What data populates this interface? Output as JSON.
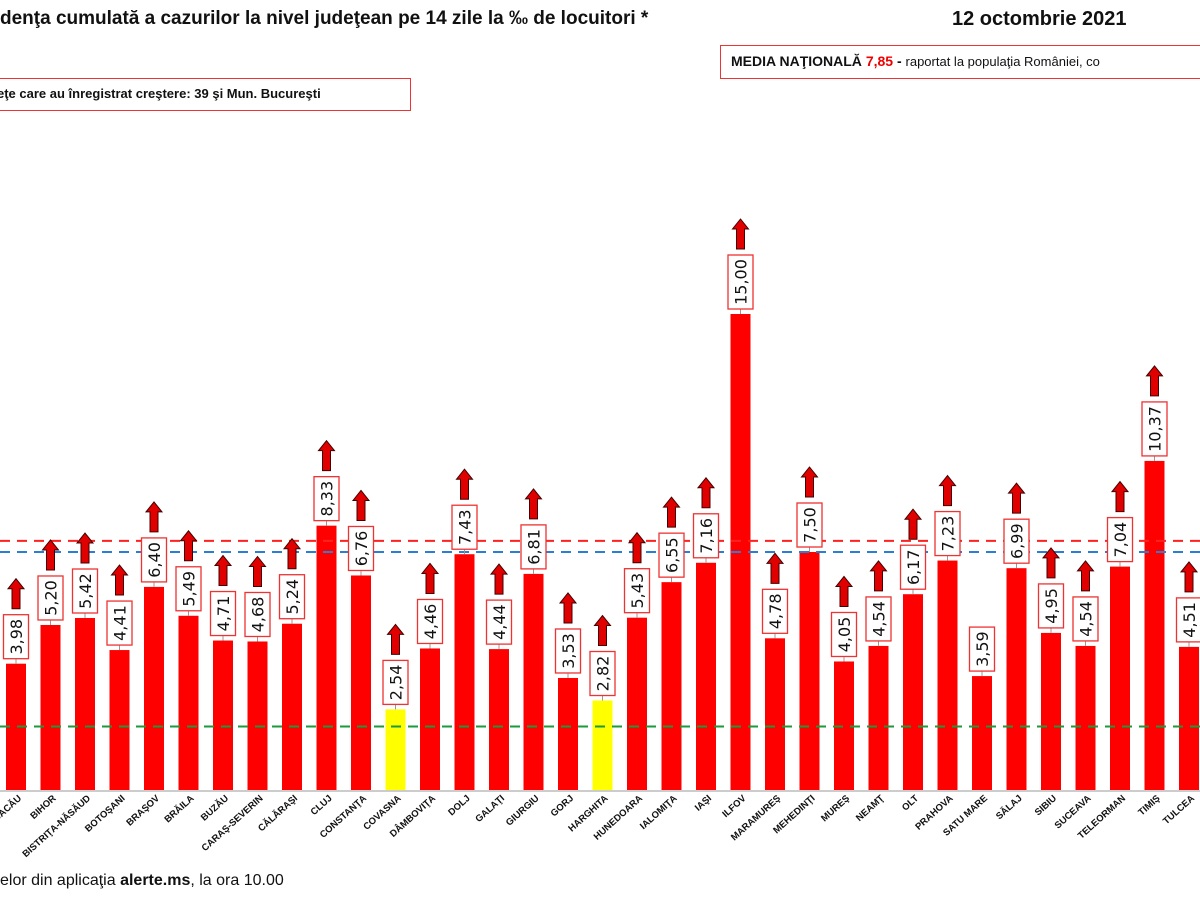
{
  "header": {
    "title": "denţa cumulată a cazurilor la nivel judeţean pe 14 zile la ‰ de locuitori *",
    "date": "12 octombrie 2021",
    "media_label": "MEDIA NAŢIONALĂ",
    "media_value": "7,85",
    "media_dash": " - ",
    "media_rest": "raportat la populaţia României, co",
    "increase_note": "eţe care au înregistrat creştere:  39 şi Mun. Bucureşti"
  },
  "footer": {
    "prefix": "elor din aplicaţia ",
    "app": "alerte.ms",
    "suffix": ", la ora 10.00"
  },
  "colors": {
    "bar": "#ff0000",
    "bar_low": "#ffff00",
    "national_line": "#ff2020",
    "blue_line": "#2a7fd4",
    "green_line": "#1a9a3a",
    "arrow": "#e00000"
  },
  "chart_data": {
    "type": "bar",
    "categories": [
      "BACĂU",
      "BIHOR",
      "BISTRIŢA-NĂSĂUD",
      "BOTOŞANI",
      "BRAŞOV",
      "BRĂILA",
      "BUZĂU",
      "CARAŞ-SEVERIN",
      "CĂLĂRAŞI",
      "CLUJ",
      "CONSTANŢA",
      "COVASNA",
      "DÂMBOVIŢA",
      "DOLJ",
      "GALAŢI",
      "GIURGIU",
      "GORJ",
      "HARGHITA",
      "HUNEDOARA",
      "IALOMIŢA",
      "IAŞI",
      "ILFOV",
      "MARAMUREŞ",
      "MEHEDINŢI",
      "MUREŞ",
      "NEAMŢ",
      "OLT",
      "PRAHOVA",
      "SATU MARE",
      "SĂLAJ",
      "SIBIU",
      "SUCEAVA",
      "TELEORMAN",
      "TIMIŞ",
      "TULCEA"
    ],
    "values": [
      3.98,
      5.2,
      5.42,
      4.41,
      6.4,
      5.49,
      4.71,
      4.68,
      5.24,
      8.33,
      6.76,
      2.54,
      4.46,
      7.43,
      4.44,
      6.81,
      3.53,
      2.82,
      5.43,
      6.55,
      7.16,
      15.0,
      4.78,
      7.5,
      4.05,
      4.54,
      6.17,
      7.23,
      3.59,
      6.99,
      4.95,
      4.54,
      7.04,
      10.37,
      4.51
    ],
    "data_labels": [
      "3,98",
      "5,20",
      "5,42",
      "4,41",
      "6,40",
      "5,49",
      "4,71",
      "4,68",
      "5,24",
      "8,33",
      "6,76",
      "2,54",
      "4,46",
      "7,43",
      "4,44",
      "6,81",
      "3,53",
      "2,82",
      "5,43",
      "6,55",
      "7,16",
      "15,00",
      "4,78",
      "7,50",
      "4,05",
      "4,54",
      "6,17",
      "7,23",
      "3,59",
      "6,99",
      "4,95",
      "4,54",
      "7,04",
      "10,37",
      "4,51"
    ],
    "trend_up": [
      true,
      true,
      true,
      true,
      true,
      true,
      true,
      true,
      true,
      true,
      true,
      true,
      true,
      true,
      true,
      true,
      true,
      true,
      true,
      true,
      true,
      true,
      true,
      true,
      true,
      true,
      true,
      true,
      false,
      true,
      true,
      true,
      true,
      true,
      true
    ],
    "reference_lines": [
      {
        "value": 7.85,
        "color": "#ff2020",
        "style": "dashed"
      },
      {
        "value": 7.5,
        "color": "#2a7fd4",
        "style": "dashed"
      },
      {
        "value": 2.0,
        "color": "#1a9a3a",
        "style": "dashed"
      }
    ],
    "ylim": [
      0,
      15
    ],
    "grid": false
  }
}
